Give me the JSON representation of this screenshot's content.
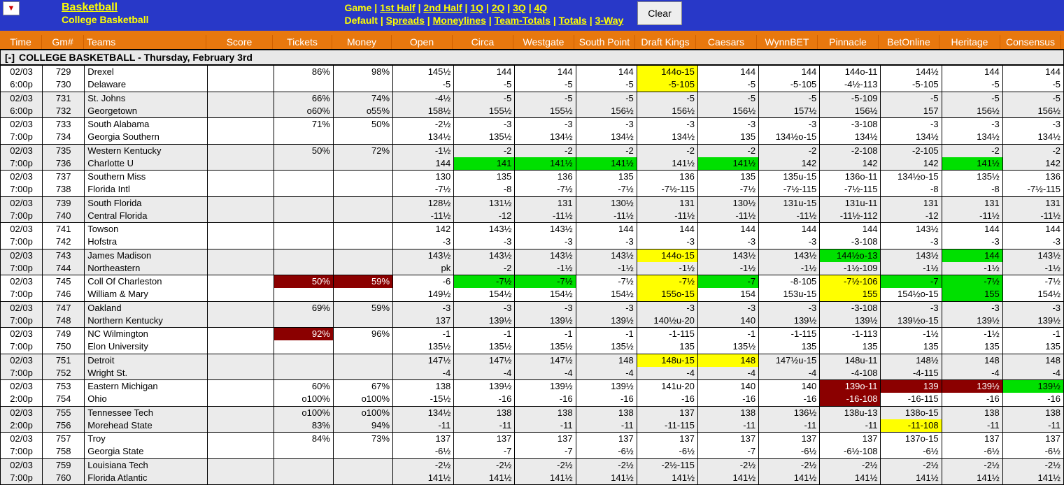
{
  "header": {
    "title": "Basketball",
    "subtitle": "College Basketball",
    "nav_row1": [
      "Game",
      "1st Half",
      "2nd Half",
      "1Q",
      "2Q",
      "3Q",
      "4Q"
    ],
    "nav_row1_plain_idx": 0,
    "nav_row2": [
      "Default",
      "Spreads",
      "Moneylines",
      "Team-Totals",
      "Totals",
      "3-Way"
    ],
    "nav_row2_plain_idx": 0,
    "clear": "Clear"
  },
  "columns": {
    "time": "Time",
    "gm": "Gm#",
    "teams": "Teams",
    "score": "Score",
    "tickets": "Tickets",
    "money": "Money",
    "books": [
      "Open",
      "Circa",
      "Westgate",
      "South Point",
      "Draft Kings",
      "Caesars",
      "WynnBET",
      "Pinnacle",
      "BetOnline",
      "Heritage",
      "Consensus"
    ]
  },
  "section": {
    "toggle": "[-]",
    "label": "COLLEGE BASKETBALL - Thursday, February 3rd"
  },
  "colors": {
    "header_bg": "#2838c8",
    "orange": "#e8780e",
    "yellow": "#ffff00",
    "green": "#00e000",
    "darkred": "#8b0000",
    "row_odd": "#ebebeb"
  },
  "col_widths": {
    "time": 60,
    "gm": 60,
    "teams": 175,
    "score": 95,
    "tickets": 85,
    "money": 85,
    "book": 87
  },
  "games": [
    {
      "date": "02/03",
      "time": "6:00p",
      "gm": [
        "729",
        "730"
      ],
      "teams": [
        "Drexel",
        "Delaware"
      ],
      "tickets": [
        "86%",
        ""
      ],
      "money": [
        "98%",
        ""
      ],
      "books": [
        {
          "a": "145½",
          "b": "-5"
        },
        {
          "a": "144",
          "b": "-5"
        },
        {
          "a": "144",
          "b": "-5"
        },
        {
          "a": "144",
          "b": "-5"
        },
        {
          "a": "144o-15",
          "b": "-5-105",
          "ha": "yellow",
          "hb": "yellow"
        },
        {
          "a": "144",
          "b": "-5"
        },
        {
          "a": "144",
          "b": "-5-105"
        },
        {
          "a": "144o-11",
          "b": "-4½-113"
        },
        {
          "a": "144½",
          "b": "-5-105"
        },
        {
          "a": "144",
          "b": "-5"
        },
        {
          "a": "144",
          "b": "-5"
        }
      ]
    },
    {
      "date": "02/03",
      "time": "6:00p",
      "gm": [
        "731",
        "732"
      ],
      "teams": [
        "St. Johns",
        "Georgetown"
      ],
      "tickets": [
        "66%",
        "o60%"
      ],
      "money": [
        "74%",
        "o55%"
      ],
      "books": [
        {
          "a": "-4½",
          "b": "158½"
        },
        {
          "a": "-5",
          "b": "155½"
        },
        {
          "a": "-5",
          "b": "155½"
        },
        {
          "a": "-5",
          "b": "156½"
        },
        {
          "a": "-5",
          "b": "156½"
        },
        {
          "a": "-5",
          "b": "156½"
        },
        {
          "a": "-5",
          "b": "157½"
        },
        {
          "a": "-5-109",
          "b": "156½"
        },
        {
          "a": "-5",
          "b": "157"
        },
        {
          "a": "-5",
          "b": "156½"
        },
        {
          "a": "-5",
          "b": "156½"
        }
      ]
    },
    {
      "date": "02/03",
      "time": "7:00p",
      "gm": [
        "733",
        "734"
      ],
      "teams": [
        "South Alabama",
        "Georgia Southern"
      ],
      "tickets": [
        "71%",
        ""
      ],
      "money": [
        "50%",
        ""
      ],
      "books": [
        {
          "a": "-2½",
          "b": "134½"
        },
        {
          "a": "-3",
          "b": "135½"
        },
        {
          "a": "-3",
          "b": "134½"
        },
        {
          "a": "-3",
          "b": "134½"
        },
        {
          "a": "-3",
          "b": "134½"
        },
        {
          "a": "-3",
          "b": "135"
        },
        {
          "a": "-3",
          "b": "134½o-15"
        },
        {
          "a": "-3-108",
          "b": "134½"
        },
        {
          "a": "-3",
          "b": "134½"
        },
        {
          "a": "-3",
          "b": "134½"
        },
        {
          "a": "-3",
          "b": "134½"
        }
      ]
    },
    {
      "date": "02/03",
      "time": "7:00p",
      "gm": [
        "735",
        "736"
      ],
      "teams": [
        "Western Kentucky",
        "Charlotte U"
      ],
      "tickets": [
        "50%",
        ""
      ],
      "money": [
        "72%",
        ""
      ],
      "books": [
        {
          "a": "-1½",
          "b": "144"
        },
        {
          "a": "-2",
          "b": "141",
          "hb": "green"
        },
        {
          "a": "-2",
          "b": "141½",
          "hb": "green"
        },
        {
          "a": "-2",
          "b": "141½",
          "hb": "green"
        },
        {
          "a": "-2",
          "b": "141½"
        },
        {
          "a": "-2",
          "b": "141½",
          "hb": "green"
        },
        {
          "a": "-2",
          "b": "142"
        },
        {
          "a": "-2-108",
          "b": "142"
        },
        {
          "a": "-2-105",
          "b": "142"
        },
        {
          "a": "-2",
          "b": "141½",
          "hb": "green"
        },
        {
          "a": "-2",
          "b": "142"
        }
      ]
    },
    {
      "date": "02/03",
      "time": "7:00p",
      "gm": [
        "737",
        "738"
      ],
      "teams": [
        "Southern Miss",
        "Florida Intl"
      ],
      "tickets": [
        "",
        ""
      ],
      "money": [
        "",
        ""
      ],
      "books": [
        {
          "a": "130",
          "b": "-7½"
        },
        {
          "a": "135",
          "b": "-8"
        },
        {
          "a": "136",
          "b": "-7½"
        },
        {
          "a": "135",
          "b": "-7½"
        },
        {
          "a": "136",
          "b": "-7½-115"
        },
        {
          "a": "135",
          "b": "-7½"
        },
        {
          "a": "135u-15",
          "b": "-7½-115"
        },
        {
          "a": "136o-11",
          "b": "-7½-115"
        },
        {
          "a": "134½o-15",
          "b": "-8"
        },
        {
          "a": "135½",
          "b": "-8"
        },
        {
          "a": "136",
          "b": "-7½-115"
        }
      ]
    },
    {
      "date": "02/03",
      "time": "7:00p",
      "gm": [
        "739",
        "740"
      ],
      "teams": [
        "South Florida",
        "Central Florida"
      ],
      "tickets": [
        "",
        ""
      ],
      "money": [
        "",
        ""
      ],
      "books": [
        {
          "a": "128½",
          "b": "-11½"
        },
        {
          "a": "131½",
          "b": "-12"
        },
        {
          "a": "131",
          "b": "-11½"
        },
        {
          "a": "130½",
          "b": "-11½"
        },
        {
          "a": "131",
          "b": "-11½"
        },
        {
          "a": "130½",
          "b": "-11½"
        },
        {
          "a": "131u-15",
          "b": "-11½"
        },
        {
          "a": "131u-11",
          "b": "-11½-112"
        },
        {
          "a": "131",
          "b": "-12"
        },
        {
          "a": "131",
          "b": "-11½"
        },
        {
          "a": "131",
          "b": "-11½"
        }
      ]
    },
    {
      "date": "02/03",
      "time": "7:00p",
      "gm": [
        "741",
        "742"
      ],
      "teams": [
        "Towson",
        "Hofstra"
      ],
      "tickets": [
        "",
        ""
      ],
      "money": [
        "",
        ""
      ],
      "books": [
        {
          "a": "142",
          "b": "-3"
        },
        {
          "a": "143½",
          "b": "-3"
        },
        {
          "a": "143½",
          "b": "-3"
        },
        {
          "a": "144",
          "b": "-3"
        },
        {
          "a": "144",
          "b": "-3"
        },
        {
          "a": "144",
          "b": "-3"
        },
        {
          "a": "144",
          "b": "-3"
        },
        {
          "a": "144",
          "b": "-3-108"
        },
        {
          "a": "143½",
          "b": "-3"
        },
        {
          "a": "144",
          "b": "-3"
        },
        {
          "a": "144",
          "b": "-3"
        }
      ]
    },
    {
      "date": "02/03",
      "time": "7:00p",
      "gm": [
        "743",
        "744"
      ],
      "teams": [
        "James Madison",
        "Northeastern"
      ],
      "tickets": [
        "",
        ""
      ],
      "money": [
        "",
        ""
      ],
      "books": [
        {
          "a": "143½",
          "b": "pk"
        },
        {
          "a": "143½",
          "b": "-2"
        },
        {
          "a": "143½",
          "b": "-1½"
        },
        {
          "a": "143½",
          "b": "-1½"
        },
        {
          "a": "144o-15",
          "b": "-1½",
          "ha": "yellow"
        },
        {
          "a": "143½",
          "b": "-1½"
        },
        {
          "a": "143½",
          "b": "-1½"
        },
        {
          "a": "144½o-13",
          "b": "-1½-109",
          "ha": "green"
        },
        {
          "a": "143½",
          "b": "-1½"
        },
        {
          "a": "144",
          "b": "-1½",
          "ha": "green"
        },
        {
          "a": "143½",
          "b": "-1½"
        }
      ]
    },
    {
      "date": "02/03",
      "time": "7:00p",
      "gm": [
        "745",
        "746"
      ],
      "teams": [
        "Coll Of Charleston",
        "William & Mary"
      ],
      "tickets": [
        "50%",
        ""
      ],
      "money": [
        "59%",
        ""
      ],
      "ht": "darkred",
      "hm": "darkred",
      "books": [
        {
          "a": "-6",
          "b": "149½"
        },
        {
          "a": "-7½",
          "b": "154½",
          "ha": "green"
        },
        {
          "a": "-7½",
          "b": "154½",
          "ha": "green"
        },
        {
          "a": "-7½",
          "b": "154½"
        },
        {
          "a": "-7½",
          "b": "155o-15",
          "ha": "yellow",
          "hb": "yellow"
        },
        {
          "a": "-7",
          "b": "154",
          "ha": "green"
        },
        {
          "a": "-8-105",
          "b": "153u-15"
        },
        {
          "a": "-7½-106",
          "b": "155",
          "ha": "yellow",
          "hb": "yellow"
        },
        {
          "a": "-7",
          "b": "154½o-15",
          "ha": "green"
        },
        {
          "a": "-7½",
          "b": "155",
          "ha": "green",
          "hb": "green"
        },
        {
          "a": "-7½",
          "b": "154½"
        }
      ]
    },
    {
      "date": "02/03",
      "time": "7:00p",
      "gm": [
        "747",
        "748"
      ],
      "teams": [
        "Oakland",
        "Northern Kentucky"
      ],
      "tickets": [
        "69%",
        ""
      ],
      "money": [
        "59%",
        ""
      ],
      "books": [
        {
          "a": "-3",
          "b": "137"
        },
        {
          "a": "-3",
          "b": "139½"
        },
        {
          "a": "-3",
          "b": "139½"
        },
        {
          "a": "-3",
          "b": "139½"
        },
        {
          "a": "-3",
          "b": "140½u-20"
        },
        {
          "a": "-3",
          "b": "140"
        },
        {
          "a": "-3",
          "b": "139½"
        },
        {
          "a": "-3-108",
          "b": "139½"
        },
        {
          "a": "-3",
          "b": "139½o-15"
        },
        {
          "a": "-3",
          "b": "139½"
        },
        {
          "a": "-3",
          "b": "139½"
        }
      ]
    },
    {
      "date": "02/03",
      "time": "7:00p",
      "gm": [
        "749",
        "750"
      ],
      "teams": [
        "NC Wilmington",
        "Elon University"
      ],
      "tickets": [
        "92%",
        ""
      ],
      "money": [
        "96%",
        ""
      ],
      "ht": "darkred",
      "books": [
        {
          "a": "-1",
          "b": "135½"
        },
        {
          "a": "-1",
          "b": "135½"
        },
        {
          "a": "-1",
          "b": "135½"
        },
        {
          "a": "-1",
          "b": "135½"
        },
        {
          "a": "-1-115",
          "b": "135"
        },
        {
          "a": "-1",
          "b": "135½"
        },
        {
          "a": "-1-115",
          "b": "135"
        },
        {
          "a": "-1-113",
          "b": "135"
        },
        {
          "a": "-1½",
          "b": "135"
        },
        {
          "a": "-1½",
          "b": "135"
        },
        {
          "a": "-1",
          "b": "135"
        }
      ]
    },
    {
      "date": "02/03",
      "time": "7:00p",
      "gm": [
        "751",
        "752"
      ],
      "teams": [
        "Detroit",
        "Wright St."
      ],
      "tickets": [
        "",
        ""
      ],
      "money": [
        "",
        ""
      ],
      "books": [
        {
          "a": "147½",
          "b": "-4"
        },
        {
          "a": "147½",
          "b": "-4"
        },
        {
          "a": "147½",
          "b": "-4"
        },
        {
          "a": "148",
          "b": "-4"
        },
        {
          "a": "148u-15",
          "b": "-4",
          "ha": "yellow"
        },
        {
          "a": "148",
          "b": "-4",
          "ha": "yellow"
        },
        {
          "a": "147½u-15",
          "b": "-4"
        },
        {
          "a": "148u-11",
          "b": "-4-108"
        },
        {
          "a": "148½",
          "b": "-4-115"
        },
        {
          "a": "148",
          "b": "-4"
        },
        {
          "a": "148",
          "b": "-4"
        }
      ]
    },
    {
      "date": "02/03",
      "time": "2:00p",
      "gm": [
        "753",
        "754"
      ],
      "teams": [
        "Eastern Michigan",
        "Ohio"
      ],
      "tickets": [
        "60%",
        "o100%"
      ],
      "money": [
        "67%",
        "o100%"
      ],
      "books": [
        {
          "a": "138",
          "b": "-15½"
        },
        {
          "a": "139½",
          "b": "-16"
        },
        {
          "a": "139½",
          "b": "-16"
        },
        {
          "a": "139½",
          "b": "-16"
        },
        {
          "a": "141u-20",
          "b": "-16"
        },
        {
          "a": "140",
          "b": "-16"
        },
        {
          "a": "140",
          "b": "-16"
        },
        {
          "a": "139o-11",
          "b": "-16-108",
          "ha": "darkred",
          "hb": "darkred"
        },
        {
          "a": "139",
          "b": "-16-115",
          "ha": "darkred"
        },
        {
          "a": "139½",
          "b": "-16",
          "ha": "darkred"
        },
        {
          "a": "139½",
          "b": "-16",
          "ha": "green"
        }
      ]
    },
    {
      "date": "02/03",
      "time": "2:00p",
      "gm": [
        "755",
        "756"
      ],
      "teams": [
        "Tennessee Tech",
        "Morehead State"
      ],
      "tickets": [
        "o100%",
        "83%"
      ],
      "money": [
        "o100%",
        "94%"
      ],
      "books": [
        {
          "a": "134½",
          "b": "-11"
        },
        {
          "a": "138",
          "b": "-11"
        },
        {
          "a": "138",
          "b": "-11"
        },
        {
          "a": "138",
          "b": "-11"
        },
        {
          "a": "137",
          "b": "-11-115"
        },
        {
          "a": "138",
          "b": "-11"
        },
        {
          "a": "136½",
          "b": "-11"
        },
        {
          "a": "138u-13",
          "b": "-11"
        },
        {
          "a": "138o-15",
          "b": "-11-108",
          "hb": "yellow"
        },
        {
          "a": "138",
          "b": "-11"
        },
        {
          "a": "138",
          "b": "-11"
        }
      ]
    },
    {
      "date": "02/03",
      "time": "7:00p",
      "gm": [
        "757",
        "758"
      ],
      "teams": [
        "Troy",
        "Georgia State"
      ],
      "tickets": [
        "84%",
        ""
      ],
      "money": [
        "73%",
        ""
      ],
      "books": [
        {
          "a": "137",
          "b": "-6½"
        },
        {
          "a": "137",
          "b": "-7"
        },
        {
          "a": "137",
          "b": "-7"
        },
        {
          "a": "137",
          "b": "-6½"
        },
        {
          "a": "137",
          "b": "-6½"
        },
        {
          "a": "137",
          "b": "-7"
        },
        {
          "a": "137",
          "b": "-6½"
        },
        {
          "a": "137",
          "b": "-6½-108"
        },
        {
          "a": "137o-15",
          "b": "-6½"
        },
        {
          "a": "137",
          "b": "-6½"
        },
        {
          "a": "137",
          "b": "-6½"
        }
      ]
    },
    {
      "date": "02/03",
      "time": "7:00p",
      "gm": [
        "759",
        "760"
      ],
      "teams": [
        "Louisiana Tech",
        "Florida Atlantic"
      ],
      "tickets": [
        "",
        ""
      ],
      "money": [
        "",
        ""
      ],
      "books": [
        {
          "a": "-2½",
          "b": "141½"
        },
        {
          "a": "-2½",
          "b": "141½"
        },
        {
          "a": "-2½",
          "b": "141½"
        },
        {
          "a": "-2½",
          "b": "141½"
        },
        {
          "a": "-2½-115",
          "b": "141½"
        },
        {
          "a": "-2½",
          "b": "141½"
        },
        {
          "a": "-2½",
          "b": "141½"
        },
        {
          "a": "-2½",
          "b": "141½"
        },
        {
          "a": "-2½",
          "b": "141½"
        },
        {
          "a": "-2½",
          "b": "141½"
        },
        {
          "a": "-2½",
          "b": "141½"
        }
      ]
    }
  ]
}
